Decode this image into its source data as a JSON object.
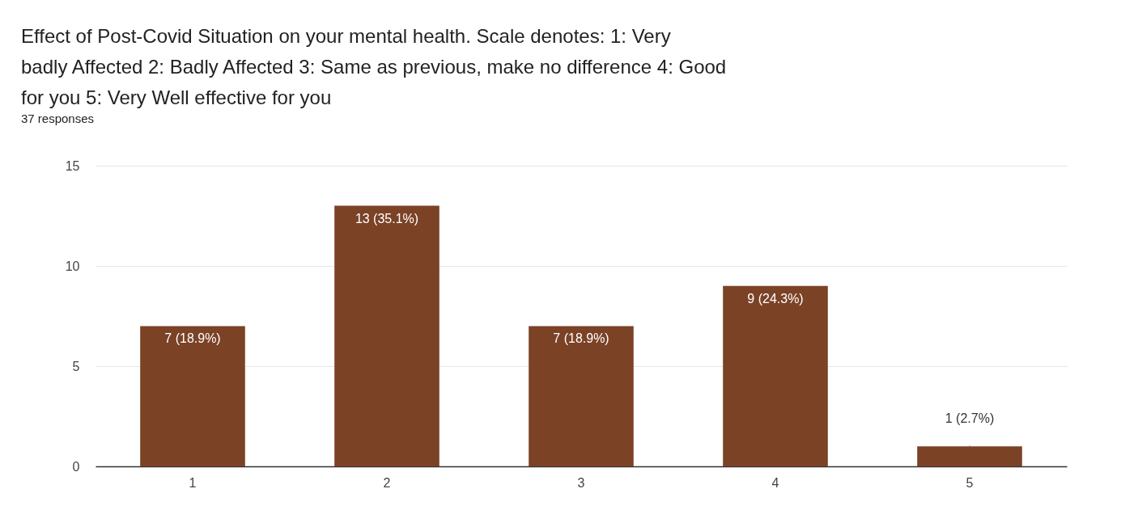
{
  "chart_data": {
    "type": "bar",
    "title": "Effect of Post-Covid Situation on your mental health.   Scale denotes: 1: Very badly Affected 2: Badly Affected 3: Same as previous, make no difference  4: Good for you 5: Very Well effective for you",
    "subtitle": "37 responses",
    "categories": [
      "1",
      "2",
      "3",
      "4",
      "5"
    ],
    "values": [
      7,
      13,
      7,
      9,
      1
    ],
    "value_labels": [
      "7 (18.9%)",
      "13 (35.1%)",
      "7 (18.9%)",
      "9 (24.3%)",
      "1 (2.7%)"
    ],
    "color": "#7b4226",
    "ylim": [
      0,
      15
    ],
    "yticks": [
      0,
      5,
      10,
      15
    ],
    "grid": "y"
  }
}
